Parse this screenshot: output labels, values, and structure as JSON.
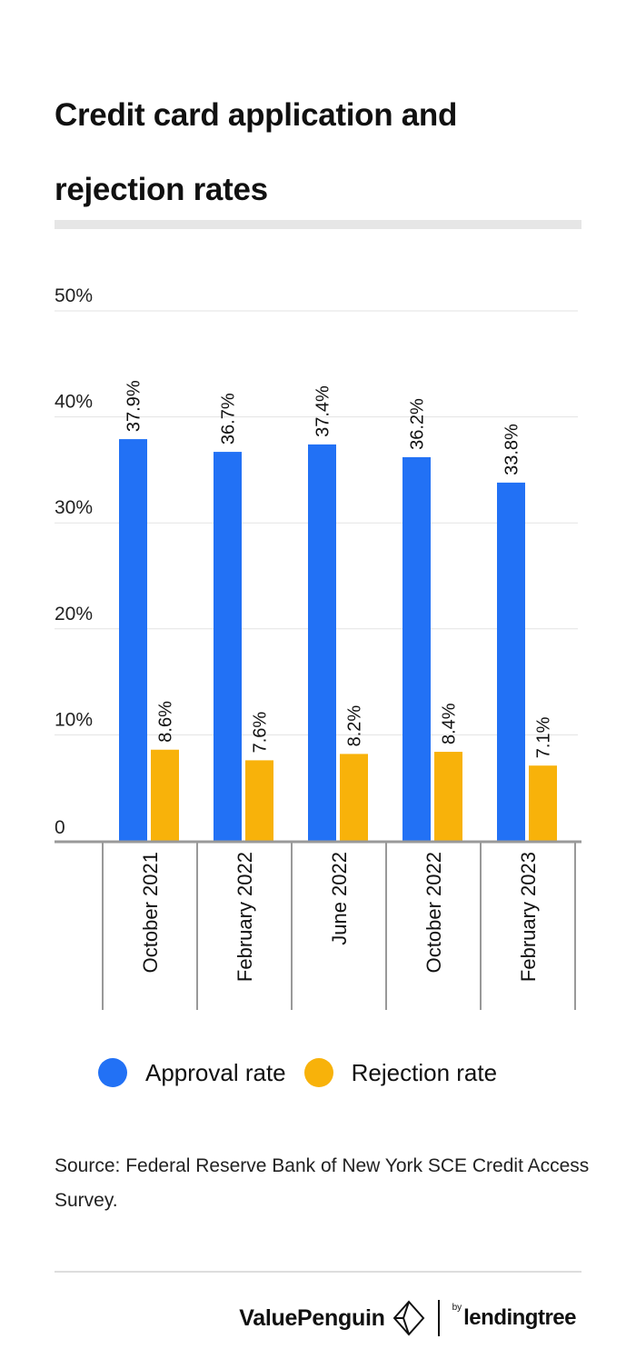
{
  "title": "Credit card application and rejection rates",
  "chart_data": {
    "type": "bar",
    "categories": [
      "October 2021",
      "February 2022",
      "June 2022",
      "October 2022",
      "February 2023"
    ],
    "series": [
      {
        "name": "Approval rate",
        "color": "#2271f5",
        "values": [
          37.9,
          36.7,
          37.4,
          36.2,
          33.8
        ],
        "labels": [
          "37.9%",
          "36.7%",
          "37.4%",
          "36.2%",
          "33.8%"
        ]
      },
      {
        "name": "Rejection rate",
        "color": "#f8b20a",
        "values": [
          8.6,
          7.6,
          8.2,
          8.4,
          7.1
        ],
        "labels": [
          "8.6%",
          "7.6%",
          "8.2%",
          "8.4%",
          "7.1%"
        ]
      }
    ],
    "ylim": [
      0,
      50
    ],
    "yticks": [
      0,
      10,
      20,
      30,
      40,
      50
    ],
    "ytick_labels": [
      "0",
      "10%",
      "20%",
      "30%",
      "40%",
      "50%"
    ],
    "grid": true,
    "legend_position": "bottom"
  },
  "source": "Source: Federal Reserve Bank of New York SCE Credit Access Survey.",
  "footer": {
    "brand": "ValuePenguin",
    "by": "by",
    "partner": "lendingtree"
  }
}
